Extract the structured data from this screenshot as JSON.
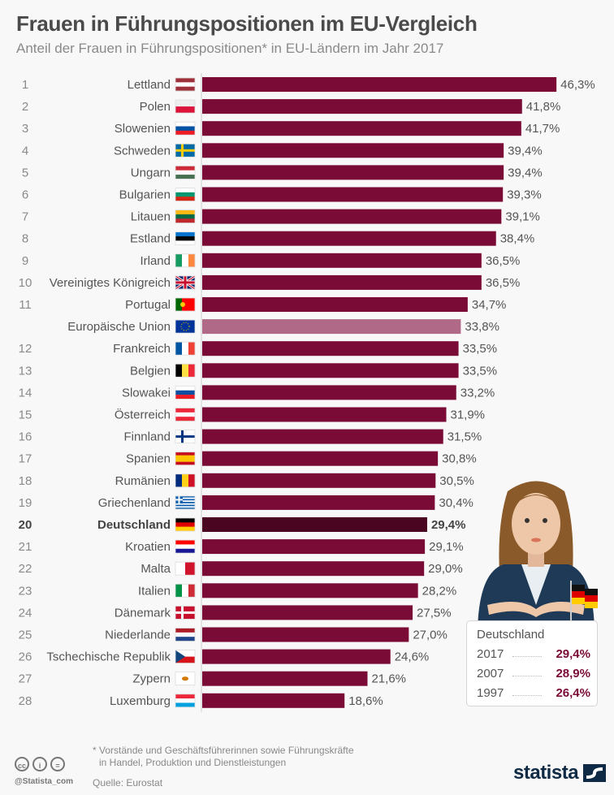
{
  "header": {
    "title": "Frauen in Führungspositionen im EU-Vergleich",
    "subtitle": "Anteil der Frauen in Führungspositionen* in EU-Ländern im Jahr 2017"
  },
  "chart_data": {
    "type": "bar",
    "orientation": "horizontal",
    "title": "Frauen in Führungspositionen im EU-Vergleich",
    "subtitle": "Anteil der Frauen in Führungspositionen* in EU-Ländern im Jahr 2017",
    "unit": "%",
    "xlim": [
      0,
      50
    ],
    "grid": false,
    "colors": {
      "default": "#7a0a36",
      "eu": "#b06a87",
      "highlight": "#4a0520"
    },
    "rows": [
      {
        "rank": "1",
        "country": "Lettland",
        "flag": "latvia-flag",
        "value": 46.3,
        "label": "46,3%"
      },
      {
        "rank": "2",
        "country": "Polen",
        "flag": "poland-flag",
        "value": 41.8,
        "label": "41,8%"
      },
      {
        "rank": "3",
        "country": "Slowenien",
        "flag": "slovenia-flag",
        "value": 41.7,
        "label": "41,7%"
      },
      {
        "rank": "4",
        "country": "Schweden",
        "flag": "sweden-flag",
        "value": 39.4,
        "label": "39,4%"
      },
      {
        "rank": "5",
        "country": "Ungarn",
        "flag": "hungary-flag",
        "value": 39.4,
        "label": "39,4%"
      },
      {
        "rank": "6",
        "country": "Bulgarien",
        "flag": "bulgaria-flag",
        "value": 39.3,
        "label": "39,3%"
      },
      {
        "rank": "7",
        "country": "Litauen",
        "flag": "lithuania-flag",
        "value": 39.1,
        "label": "39,1%"
      },
      {
        "rank": "8",
        "country": "Estland",
        "flag": "estonia-flag",
        "value": 38.4,
        "label": "38,4%"
      },
      {
        "rank": "9",
        "country": "Irland",
        "flag": "ireland-flag",
        "value": 36.5,
        "label": "36,5%"
      },
      {
        "rank": "10",
        "country": "Vereinigtes Königreich",
        "flag": "uk-flag",
        "value": 36.5,
        "label": "36,5%"
      },
      {
        "rank": "11",
        "country": "Portugal",
        "flag": "portugal-flag",
        "value": 34.7,
        "label": "34,7%"
      },
      {
        "rank": "",
        "country": "Europäische Union",
        "flag": "eu-flag",
        "value": 33.8,
        "label": "33,8%",
        "type": "eu"
      },
      {
        "rank": "12",
        "country": "Frankreich",
        "flag": "france-flag",
        "value": 33.5,
        "label": "33,5%"
      },
      {
        "rank": "13",
        "country": "Belgien",
        "flag": "belgium-flag",
        "value": 33.5,
        "label": "33,5%"
      },
      {
        "rank": "14",
        "country": "Slowakei",
        "flag": "slovakia-flag",
        "value": 33.2,
        "label": "33,2%"
      },
      {
        "rank": "15",
        "country": "Österreich",
        "flag": "austria-flag",
        "value": 31.9,
        "label": "31,9%"
      },
      {
        "rank": "16",
        "country": "Finnland",
        "flag": "finland-flag",
        "value": 31.5,
        "label": "31,5%"
      },
      {
        "rank": "17",
        "country": "Spanien",
        "flag": "spain-flag",
        "value": 30.8,
        "label": "30,8%"
      },
      {
        "rank": "18",
        "country": "Rumänien",
        "flag": "romania-flag",
        "value": 30.5,
        "label": "30,5%"
      },
      {
        "rank": "19",
        "country": "Griechenland",
        "flag": "greece-flag",
        "value": 30.4,
        "label": "30,4%"
      },
      {
        "rank": "20",
        "country": "Deutschland",
        "flag": "germany-flag",
        "value": 29.4,
        "label": "29,4%",
        "type": "highlight"
      },
      {
        "rank": "21",
        "country": "Kroatien",
        "flag": "croatia-flag",
        "value": 29.1,
        "label": "29,1%"
      },
      {
        "rank": "22",
        "country": "Malta",
        "flag": "malta-flag",
        "value": 29.0,
        "label": "29,0%"
      },
      {
        "rank": "23",
        "country": "Italien",
        "flag": "italy-flag",
        "value": 28.2,
        "label": "28,2%"
      },
      {
        "rank": "24",
        "country": "Dänemark",
        "flag": "denmark-flag",
        "value": 27.5,
        "label": "27,5%"
      },
      {
        "rank": "25",
        "country": "Niederlande",
        "flag": "netherlands-flag",
        "value": 27.0,
        "label": "27,0%"
      },
      {
        "rank": "26",
        "country": "Tschechische Republik",
        "flag": "czech-flag",
        "value": 24.6,
        "label": "24,6%"
      },
      {
        "rank": "27",
        "country": "Zypern",
        "flag": "cyprus-flag",
        "value": 21.6,
        "label": "21,6%"
      },
      {
        "rank": "28",
        "country": "Luxemburg",
        "flag": "luxembourg-flag",
        "value": 18.6,
        "label": "18,6%"
      }
    ]
  },
  "infobox": {
    "title": "Deutschland",
    "rows": [
      {
        "year": "2017",
        "value": "29,4%"
      },
      {
        "year": "2007",
        "value": "28,9%"
      },
      {
        "year": "1997",
        "value": "26,4%"
      }
    ]
  },
  "footer": {
    "footnote_line1": "* Vorstände und Geschäftsführerinnen sowie Führungskräfte",
    "footnote_line2": "in Handel, Produktion und Dienstleistungen",
    "source": "Quelle: Eurostat",
    "handle": "@Statista_com",
    "cc_icons": [
      "cc",
      "i",
      "="
    ],
    "logo": "statista"
  }
}
